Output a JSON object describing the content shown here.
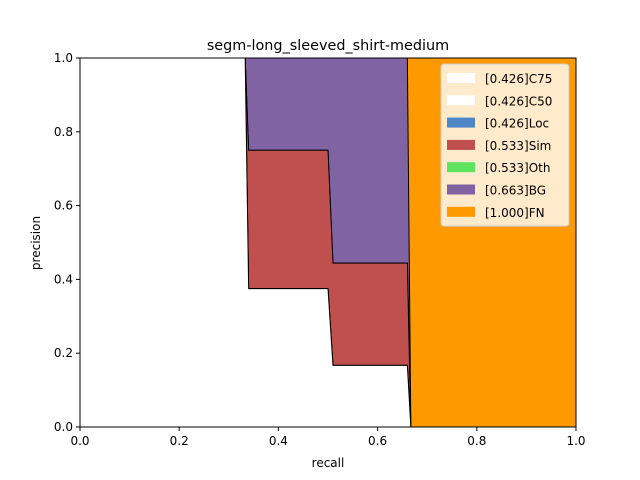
{
  "chart_data": {
    "type": "area",
    "title": "segm-long_sleeved_shirt-medium",
    "xlabel": "recall",
    "ylabel": "precision",
    "xlim": [
      0,
      1
    ],
    "ylim": [
      0,
      1
    ],
    "xticks": [
      "0.0",
      "0.2",
      "0.4",
      "0.6",
      "0.8",
      "1.0"
    ],
    "yticks": [
      "0.0",
      "0.2",
      "0.4",
      "0.6",
      "0.8",
      "1.0"
    ],
    "legend_position": "top-right",
    "series": [
      {
        "name": "[0.426]C75",
        "color": "#ffffff",
        "x": [
          0,
          0.333,
          0.333,
          0.34,
          0.34,
          0.5,
          0.5,
          0.51,
          0.51,
          0.66,
          0.66,
          0.667,
          0.667,
          1
        ],
        "y": [
          1,
          1,
          1,
          0.375,
          0.375,
          0.375,
          0.375,
          0.167,
          0.167,
          0.167,
          0.167,
          0,
          0,
          0
        ]
      },
      {
        "name": "[0.426]C50",
        "color": "#ffffff",
        "x": [
          0,
          0.333,
          0.333,
          0.34,
          0.34,
          0.5,
          0.5,
          0.51,
          0.51,
          0.66,
          0.66,
          0.667,
          0.667,
          1
        ],
        "y": [
          1,
          1,
          1,
          0.375,
          0.375,
          0.375,
          0.375,
          0.167,
          0.167,
          0.167,
          0.167,
          0,
          0,
          0
        ]
      },
      {
        "name": "[0.426]Loc",
        "color": "#4f86c6",
        "x": [
          0,
          0.333,
          0.333,
          0.34,
          0.34,
          0.5,
          0.5,
          0.51,
          0.51,
          0.66,
          0.66,
          0.667,
          0.667,
          1
        ],
        "y": [
          1,
          1,
          1,
          0.375,
          0.375,
          0.375,
          0.375,
          0.167,
          0.167,
          0.167,
          0.167,
          0,
          0,
          0
        ]
      },
      {
        "name": "[0.533]Sim",
        "color": "#c0504d",
        "x": [
          0,
          0.333,
          0.333,
          0.34,
          0.34,
          0.5,
          0.5,
          0.51,
          0.51,
          0.66,
          0.66,
          0.667,
          0.667,
          1
        ],
        "y": [
          1,
          1,
          1,
          0.75,
          0.75,
          0.75,
          0.75,
          0.444,
          0.444,
          0.444,
          0.444,
          0,
          0,
          0
        ]
      },
      {
        "name": "[0.533]Oth",
        "color": "#5ee35e",
        "x": [
          0,
          0.333,
          0.333,
          0.34,
          0.34,
          0.5,
          0.5,
          0.51,
          0.51,
          0.66,
          0.66,
          0.667,
          0.667,
          1
        ],
        "y": [
          1,
          1,
          1,
          0.75,
          0.75,
          0.75,
          0.75,
          0.444,
          0.444,
          0.444,
          0.444,
          0,
          0,
          0
        ]
      },
      {
        "name": "[0.663]BG",
        "color": "#8063a2",
        "x": [
          0,
          0.333,
          0.333,
          0.66,
          0.66,
          0.667,
          0.667,
          1
        ],
        "y": [
          1,
          1,
          1,
          1,
          1,
          0,
          0,
          0
        ]
      },
      {
        "name": "[1.000]FN",
        "color": "#ff9900",
        "x": [
          0,
          1
        ],
        "y": [
          1,
          1
        ]
      }
    ]
  }
}
